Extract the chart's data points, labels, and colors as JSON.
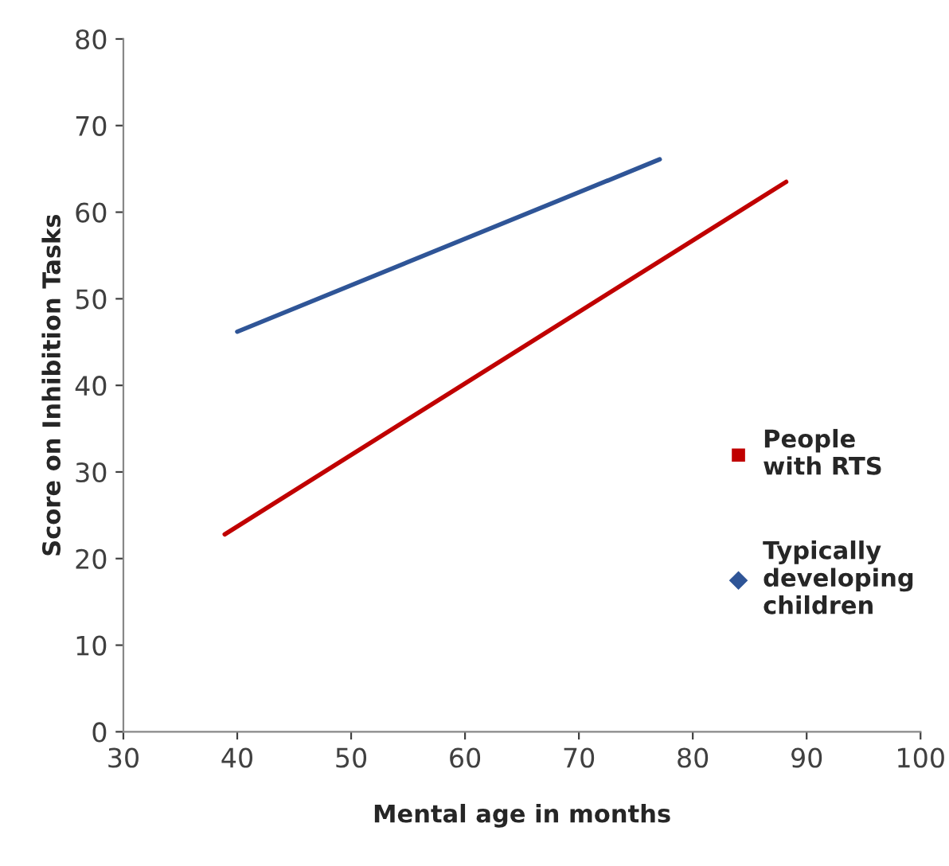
{
  "chart_data": {
    "type": "line",
    "xlabel": "Mental age in months",
    "ylabel": "Score on Inhibition Tasks",
    "series": [
      {
        "name": "People with RTS",
        "color": "#c00000",
        "x": [
          38.9,
          88.2
        ],
        "values": [
          22.8,
          63.5
        ]
      },
      {
        "name": "Typically developing children",
        "color": "#2f5597",
        "x": [
          40,
          77.1
        ],
        "values": [
          46.2,
          66.1
        ]
      }
    ],
    "xlim": [
      30,
      100
    ],
    "xticks": [
      30,
      40,
      50,
      60,
      70,
      80,
      90,
      100
    ],
    "ylim": [
      0,
      80
    ],
    "yticks": [
      0,
      10,
      20,
      30,
      40,
      50,
      60,
      70,
      80
    ],
    "grid": false,
    "legend": "right",
    "marker": "none",
    "line_style": "solid"
  }
}
